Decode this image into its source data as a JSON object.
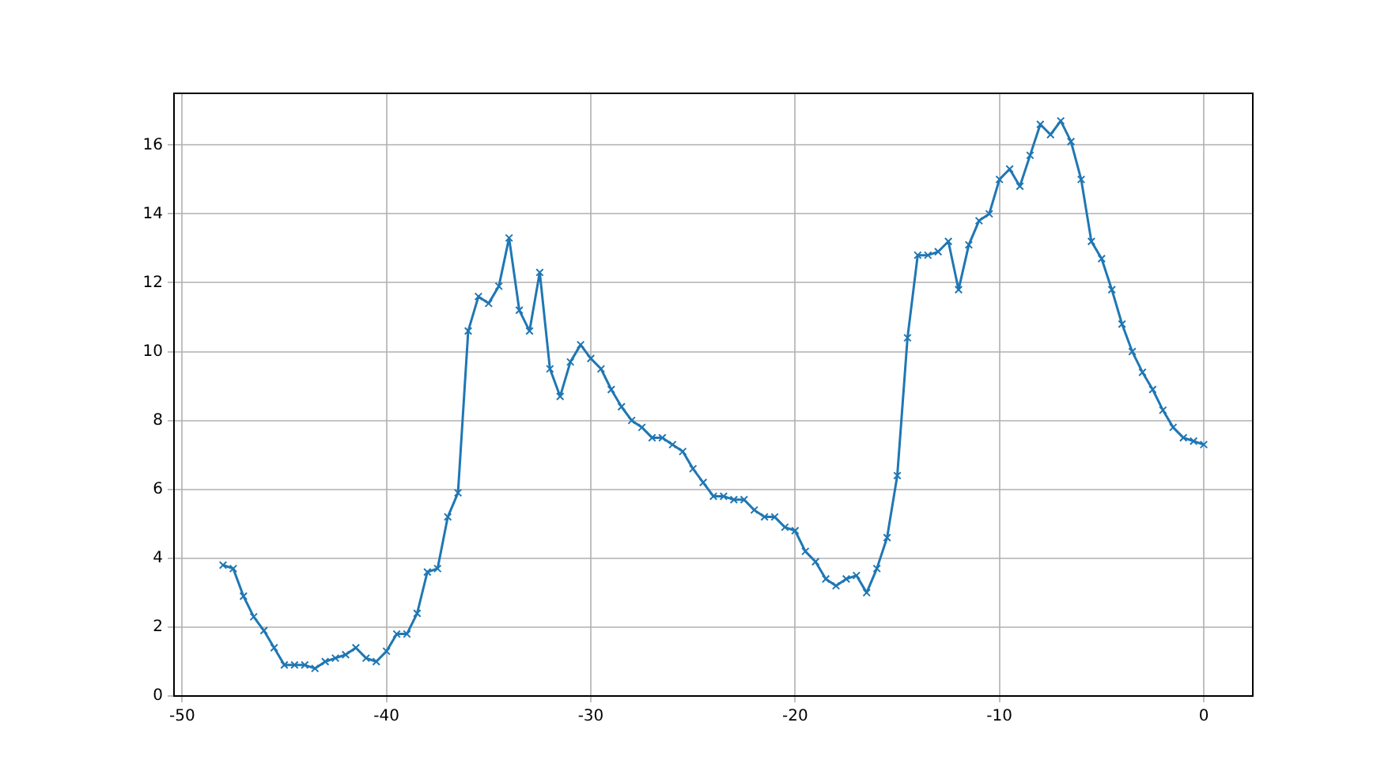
{
  "chart_data": {
    "type": "line",
    "x": [
      -48,
      -47.5,
      -47,
      -46.5,
      -46,
      -45.5,
      -45,
      -44.5,
      -44,
      -43.5,
      -43,
      -42.5,
      -42,
      -41.5,
      -41,
      -40.5,
      -40,
      -39.5,
      -39,
      -38.5,
      -38,
      -37.5,
      -37,
      -36.5,
      -36,
      -35.5,
      -35,
      -34.5,
      -34,
      -33.5,
      -33,
      -32.5,
      -32,
      -31.5,
      -31,
      -30.5,
      -30,
      -29.5,
      -29,
      -28.5,
      -28,
      -27.5,
      -27,
      -26.5,
      -26,
      -25.5,
      -25,
      -24.5,
      -24,
      -23.5,
      -23,
      -22.5,
      -22,
      -21.5,
      -21,
      -20.5,
      -20,
      -19.5,
      -19,
      -18.5,
      -18,
      -17.5,
      -17,
      -16.5,
      -16,
      -15.5,
      -15,
      -14.5,
      -14,
      -13.5,
      -13,
      -12.5,
      -12,
      -11.5,
      -11,
      -10.5,
      -10,
      -9.5,
      -9,
      -8.5,
      -8,
      -7.5,
      -7,
      -6.5,
      -6,
      -5.5,
      -5,
      -4.5,
      -4,
      -3.5,
      -3,
      -2.5,
      -2,
      -1.5,
      -1,
      -0.5,
      0
    ],
    "series": [
      {
        "color": "#1f77b4",
        "values": [
          3.8,
          3.7,
          2.9,
          2.3,
          1.9,
          1.4,
          0.9,
          0.9,
          0.9,
          0.8,
          1.0,
          1.1,
          1.2,
          1.4,
          1.1,
          1.0,
          1.3,
          1.8,
          1.8,
          2.4,
          3.6,
          3.7,
          5.2,
          5.9,
          10.6,
          11.6,
          11.4,
          11.9,
          13.3,
          11.2,
          10.6,
          12.3,
          9.5,
          8.7,
          9.7,
          10.2,
          9.8,
          9.5,
          8.9,
          8.4,
          8.0,
          7.8,
          7.5,
          7.5,
          7.3,
          7.1,
          6.6,
          6.2,
          5.8,
          5.8,
          5.7,
          5.7,
          5.4,
          5.2,
          5.2,
          4.9,
          4.8,
          4.2,
          3.9,
          3.4,
          3.2,
          3.4,
          3.5,
          3.0,
          3.7,
          4.6,
          6.4,
          10.4,
          12.8,
          12.8,
          12.9,
          13.2,
          11.8,
          13.1,
          13.8,
          14.0,
          15.0,
          15.3,
          14.8,
          15.7,
          16.6,
          16.3,
          16.7,
          16.1,
          15.0,
          13.2,
          12.7,
          11.8,
          10.8,
          10.0,
          9.4,
          8.9,
          8.3,
          7.8,
          7.5,
          7.4,
          7.3
        ]
      }
    ],
    "xlim": [
      -50.4,
      2.4
    ],
    "xticks": [
      -50,
      -40,
      -30,
      -20,
      -10,
      0
    ],
    "ylim": [
      0,
      17.5
    ],
    "yticks": [
      0,
      2,
      4,
      6,
      8,
      10,
      12,
      14,
      16
    ],
    "grid": true,
    "marker": "cross",
    "line_style": "solid",
    "legend": false
  }
}
